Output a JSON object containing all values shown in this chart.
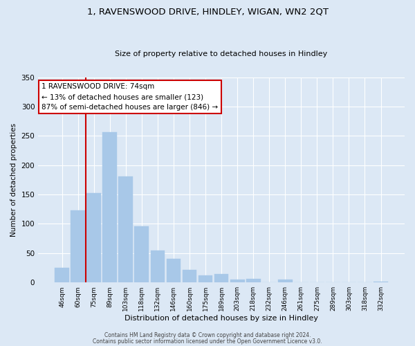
{
  "title": "1, RAVENSWOOD DRIVE, HINDLEY, WIGAN, WN2 2QT",
  "subtitle": "Size of property relative to detached houses in Hindley",
  "xlabel": "Distribution of detached houses by size in Hindley",
  "ylabel": "Number of detached properties",
  "bar_labels": [
    "46sqm",
    "60sqm",
    "75sqm",
    "89sqm",
    "103sqm",
    "118sqm",
    "132sqm",
    "146sqm",
    "160sqm",
    "175sqm",
    "189sqm",
    "203sqm",
    "218sqm",
    "232sqm",
    "246sqm",
    "261sqm",
    "275sqm",
    "289sqm",
    "303sqm",
    "318sqm",
    "332sqm"
  ],
  "bar_values": [
    25,
    123,
    153,
    256,
    181,
    96,
    55,
    40,
    22,
    12,
    14,
    5,
    6,
    0,
    5,
    0,
    0,
    0,
    0,
    0,
    2
  ],
  "bar_color": "#a8c8e8",
  "bar_edge_color": "#a8c8e8",
  "bg_color": "#dce8f5",
  "property_line_label": "1 RAVENSWOOD DRIVE: 74sqm",
  "annotation_line1": "← 13% of detached houses are smaller (123)",
  "annotation_line2": "87% of semi-detached houses are larger (846) →",
  "annotation_box_color": "#ffffff",
  "annotation_box_edge": "#cc0000",
  "vline_color": "#cc0000",
  "ylim": [
    0,
    350
  ],
  "yticks": [
    0,
    50,
    100,
    150,
    200,
    250,
    300,
    350
  ],
  "footer1": "Contains HM Land Registry data © Crown copyright and database right 2024.",
  "footer2": "Contains public sector information licensed under the Open Government Licence v3.0."
}
